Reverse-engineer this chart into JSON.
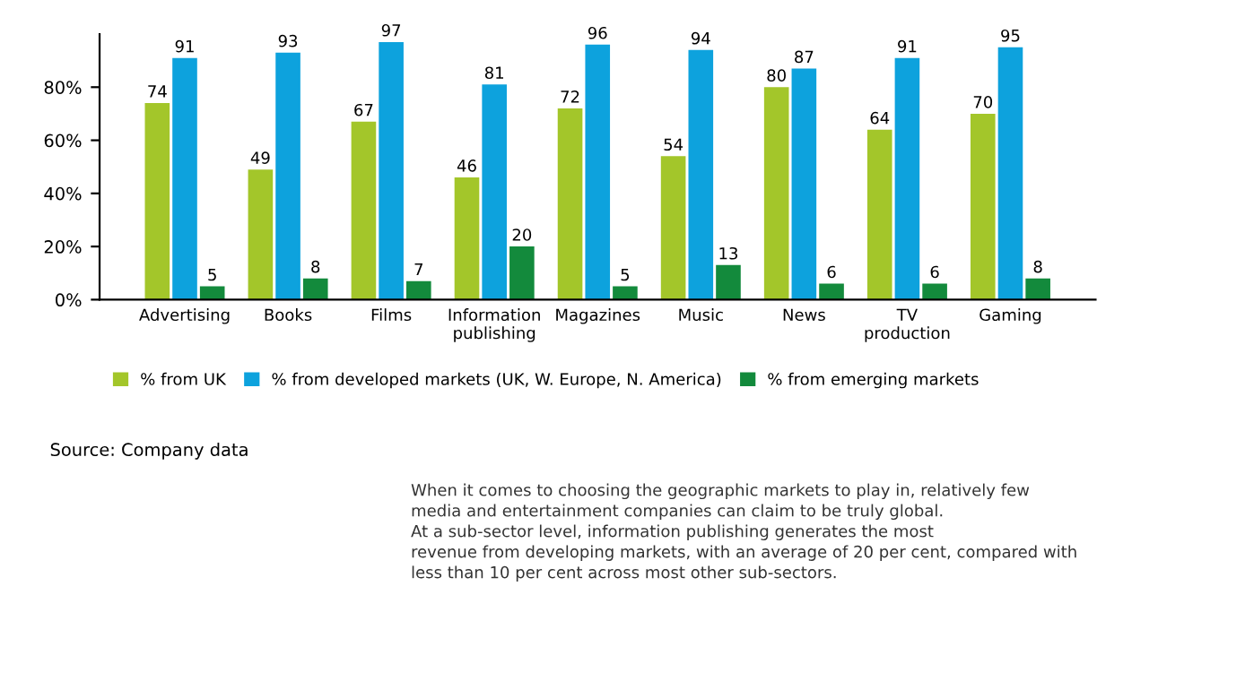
{
  "chart_data": {
    "type": "bar",
    "categories": [
      "Advertising",
      "Books",
      "Films",
      "Information\npublishing",
      "Magazines",
      "Music",
      "News",
      "TV\nproduction",
      "Gaming"
    ],
    "series": [
      {
        "name": "% from UK",
        "color": "#a3c62a",
        "values": [
          74,
          49,
          67,
          46,
          72,
          54,
          80,
          64,
          70
        ]
      },
      {
        "name": "% from developed markets (UK, W. Europe, N. America)",
        "color": "#0da2dd",
        "values": [
          91,
          93,
          97,
          81,
          96,
          94,
          87,
          91,
          95
        ]
      },
      {
        "name": "% from emerging markets",
        "color": "#138a3c",
        "values": [
          5,
          8,
          7,
          20,
          5,
          13,
          6,
          6,
          8
        ]
      }
    ],
    "ylim": [
      0,
      100
    ],
    "yticks": [
      {
        "value": 0,
        "label": "0%"
      },
      {
        "value": 20,
        "label": "20%"
      },
      {
        "value": 40,
        "label": "40%"
      },
      {
        "value": 60,
        "label": "60%"
      },
      {
        "value": 80,
        "label": "80%"
      }
    ],
    "data_labels": true,
    "grid": false,
    "legend": "bottom",
    "annotations": [
      "Source: Company data",
      "When it comes to choosing the geographic markets to play in, relatively few\nmedia and entertainment companies can claim to be truly global.\nAt a sub-sector level, information publishing generates the most\nrevenue from developing markets, with an average of 20 per cent, compared with\nless than 10 per cent across most other sub-sectors."
    ]
  }
}
